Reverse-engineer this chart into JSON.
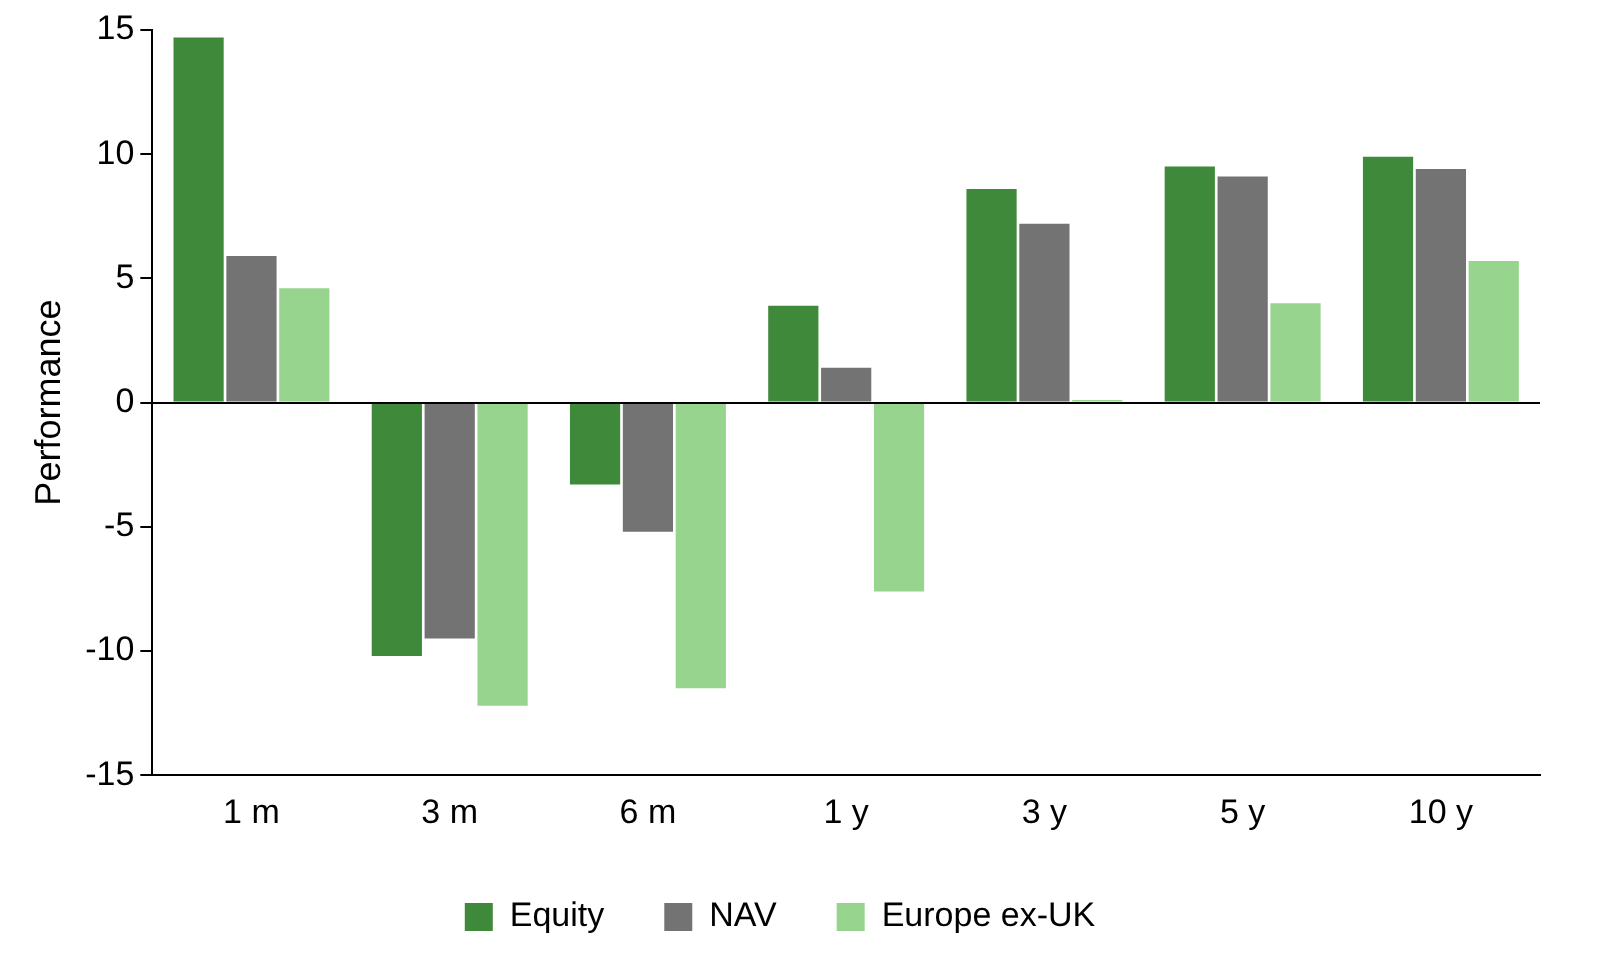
{
  "chart_data": {
    "type": "bar",
    "ylabel": "Performance",
    "categories": [
      "1 m",
      "3 m",
      "6 m",
      "1 y",
      "3 y",
      "5 y",
      "10 y"
    ],
    "series": [
      {
        "name": "Equity",
        "color": "#3f8a3a",
        "values": [
          14.7,
          -10.2,
          -3.3,
          3.9,
          8.6,
          9.5,
          9.9
        ]
      },
      {
        "name": "NAV",
        "color": "#737373",
        "values": [
          5.9,
          -9.5,
          -5.2,
          1.4,
          7.2,
          9.1,
          9.4
        ]
      },
      {
        "name": "Europe ex-UK",
        "color": "#97d48e",
        "values": [
          4.6,
          -12.2,
          -11.5,
          -7.6,
          0.1,
          4.0,
          5.7
        ]
      }
    ],
    "ylim": [
      -15,
      15
    ],
    "yticks": [
      -15,
      -10,
      -5,
      0,
      5,
      10,
      15
    ],
    "grid": false,
    "ref_lines": [
      {
        "axis": "y",
        "value": 0,
        "color": "#000000"
      }
    ],
    "legend": "bottom"
  }
}
